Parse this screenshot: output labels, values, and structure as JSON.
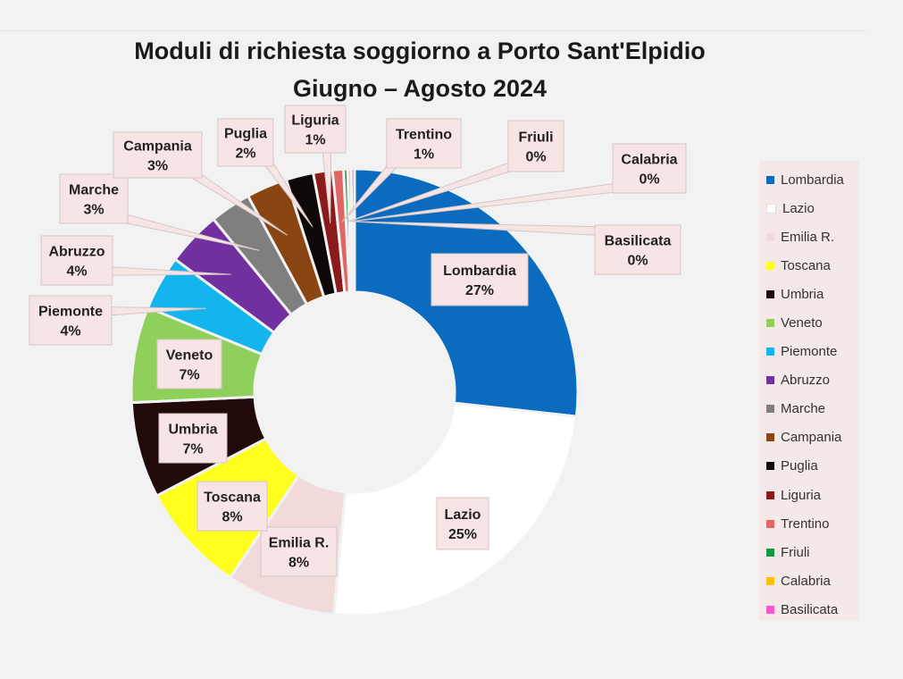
{
  "title": {
    "line1": "Moduli di richiesta soggiorno a Porto Sant'Elpidio",
    "line2": "Giugno – Agosto 2024"
  },
  "chart_data": {
    "type": "pie",
    "variant": "doughnut",
    "title": "Moduli di richiesta soggiorno a Porto Sant'Elpidio Giugno – Agosto 2024",
    "legend_position": "right",
    "slices": [
      {
        "label": "Lombardia",
        "percent_label": "27%",
        "value": 27,
        "color": "#0b6bbf"
      },
      {
        "label": "Lazio",
        "percent_label": "25%",
        "value": 25,
        "color": "#ffffff"
      },
      {
        "label": "Emilia R.",
        "percent_label": "8%",
        "value": 8,
        "color": "#f3dada"
      },
      {
        "label": "Toscana",
        "percent_label": "8%",
        "value": 8,
        "color": "#ffff1e"
      },
      {
        "label": "Umbria",
        "percent_label": "7%",
        "value": 7,
        "color": "#230a0a"
      },
      {
        "label": "Veneto",
        "percent_label": "7%",
        "value": 7,
        "color": "#8fd05a"
      },
      {
        "label": "Piemonte",
        "percent_label": "4%",
        "value": 4,
        "color": "#14b4ee"
      },
      {
        "label": "Abruzzo",
        "percent_label": "4%",
        "value": 4,
        "color": "#7030a0"
      },
      {
        "label": "Marche",
        "percent_label": "3%",
        "value": 3,
        "color": "#7f7f7f"
      },
      {
        "label": "Campania",
        "percent_label": "3%",
        "value": 3,
        "color": "#8b4513"
      },
      {
        "label": "Puglia",
        "percent_label": "2%",
        "value": 2,
        "color": "#0f0808"
      },
      {
        "label": "Liguria",
        "percent_label": "1%",
        "value": 1.4,
        "color": "#8b1a1a"
      },
      {
        "label": "Trentino",
        "percent_label": "1%",
        "value": 0.8,
        "color": "#e06666"
      },
      {
        "label": "Friuli",
        "percent_label": "0%",
        "value": 0.3,
        "color": "#119944"
      },
      {
        "label": "Calabria",
        "percent_label": "0%",
        "value": 0.25,
        "color": "#ffc000"
      },
      {
        "label": "Basilicata",
        "percent_label": "0%",
        "value": 0.25,
        "color": "#ff55cc"
      }
    ]
  }
}
